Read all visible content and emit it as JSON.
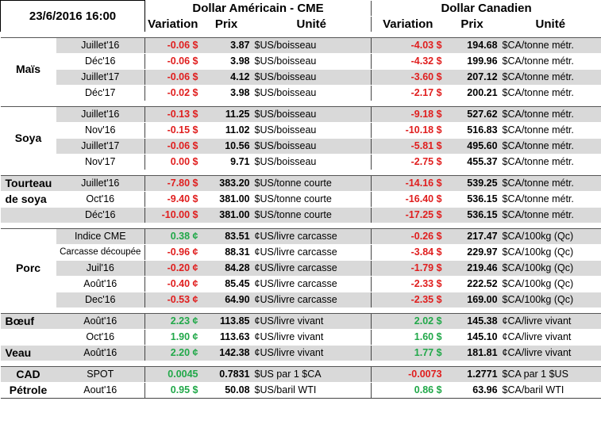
{
  "header": {
    "date": "23/6/2016 16:00",
    "group_us": "Dollar Américain - CME",
    "group_ca": "Dollar Canadien",
    "col_variation": "Variation",
    "col_prix": "Prix",
    "col_unite": "Unité"
  },
  "sections": [
    {
      "label": "Maïs",
      "rows": [
        {
          "period": "Juillet'16",
          "us_var": "-0.06 $",
          "us_price": "3.87",
          "us_unit": "$US/boisseau",
          "ca_var": "-4.03 $",
          "ca_price": "194.68",
          "ca_unit": "$CA/tonne métr."
        },
        {
          "period": "Déc'16",
          "us_var": "-0.06 $",
          "us_price": "3.98",
          "us_unit": "$US/boisseau",
          "ca_var": "-4.32 $",
          "ca_price": "199.96",
          "ca_unit": "$CA/tonne métr."
        },
        {
          "period": "Juillet'17",
          "us_var": "-0.06 $",
          "us_price": "4.12",
          "us_unit": "$US/boisseau",
          "ca_var": "-3.60 $",
          "ca_price": "207.12",
          "ca_unit": "$CA/tonne métr."
        },
        {
          "period": "Déc'17",
          "us_var": "-0.02 $",
          "us_price": "3.98",
          "us_unit": "$US/boisseau",
          "ca_var": "-2.17 $",
          "ca_price": "200.21",
          "ca_unit": "$CA/tonne métr."
        }
      ]
    },
    {
      "label": "Soya",
      "rows": [
        {
          "period": "Juillet'16",
          "us_var": "-0.13 $",
          "us_price": "11.25",
          "us_unit": "$US/boisseau",
          "ca_var": "-9.18 $",
          "ca_price": "527.62",
          "ca_unit": "$CA/tonne métr."
        },
        {
          "period": "Nov'16",
          "us_var": "-0.15 $",
          "us_price": "11.02",
          "us_unit": "$US/boisseau",
          "ca_var": "-10.18 $",
          "ca_price": "516.83",
          "ca_unit": "$CA/tonne métr."
        },
        {
          "period": "Juillet'17",
          "us_var": "-0.06 $",
          "us_price": "10.56",
          "us_unit": "$US/boisseau",
          "ca_var": "-5.81 $",
          "ca_price": "495.60",
          "ca_unit": "$CA/tonne métr."
        },
        {
          "period": "Nov'17",
          "us_var": "0.00 $",
          "us_price": "9.71",
          "us_unit": "$US/boisseau",
          "ca_var": "-2.75 $",
          "ca_price": "455.37",
          "ca_unit": "$CA/tonne métr."
        }
      ]
    },
    {
      "label_line1": "Tourteau",
      "label_line2": "de soya",
      "rows": [
        {
          "period": "Juillet'16",
          "us_var": "-7.80 $",
          "us_price": "383.20",
          "us_unit": "$US/tonne courte",
          "ca_var": "-14.16 $",
          "ca_price": "539.25",
          "ca_unit": "$CA/tonne métr."
        },
        {
          "period": "Oct'16",
          "us_var": "-9.40 $",
          "us_price": "381.00",
          "us_unit": "$US/tonne courte",
          "ca_var": "-16.40 $",
          "ca_price": "536.15",
          "ca_unit": "$CA/tonne métr."
        },
        {
          "period": "Déc'16",
          "us_var": "-10.00 $",
          "us_price": "381.00",
          "us_unit": "$US/tonne courte",
          "ca_var": "-17.25 $",
          "ca_price": "536.15",
          "ca_unit": "$CA/tonne métr."
        }
      ]
    },
    {
      "label": "Porc",
      "rows": [
        {
          "period": "Indice CME",
          "us_var": "0.38 ¢",
          "us_price": "83.51",
          "us_unit": "¢US/livre carcasse",
          "ca_var": "-0.26 $",
          "ca_price": "217.47",
          "ca_unit": "$CA/100kg (Qc)"
        },
        {
          "period": "Carcasse découpée",
          "us_var": "-0.96 ¢",
          "us_price": "88.31",
          "us_unit": "¢US/livre carcasse",
          "ca_var": "-3.84 $",
          "ca_price": "229.97",
          "ca_unit": "$CA/100kg (Qc)"
        },
        {
          "period": "Juil'16",
          "us_var": "-0.20 ¢",
          "us_price": "84.28",
          "us_unit": "¢US/livre carcasse",
          "ca_var": "-1.79 $",
          "ca_price": "219.46",
          "ca_unit": "$CA/100kg (Qc)"
        },
        {
          "period": "Août'16",
          "us_var": "-0.40 ¢",
          "us_price": "85.45",
          "us_unit": "¢US/livre carcasse",
          "ca_var": "-2.33 $",
          "ca_price": "222.52",
          "ca_unit": "$CA/100kg (Qc)"
        },
        {
          "period": "Dec'16",
          "us_var": "-0.53 ¢",
          "us_price": "64.90",
          "us_unit": "¢US/livre carcasse",
          "ca_var": "-2.35 $",
          "ca_price": "169.00",
          "ca_unit": "$CA/100kg (Qc)"
        }
      ]
    },
    {
      "label_boeuf": "Bœuf",
      "label_veau": "Veau",
      "rows": [
        {
          "period": "Août'16",
          "us_var": "2.23 ¢",
          "us_price": "113.85",
          "us_unit": "¢US/livre vivant",
          "ca_var": "2.02 $",
          "ca_price": "145.38",
          "ca_unit": "¢CA/livre vivant"
        },
        {
          "period": "Oct'16",
          "us_var": "1.90 ¢",
          "us_price": "113.63",
          "us_unit": "¢US/livre vivant",
          "ca_var": "1.60 $",
          "ca_price": "145.10",
          "ca_unit": "¢CA/livre vivant"
        },
        {
          "period": "Août'16",
          "us_var": "2.20 ¢",
          "us_price": "142.38",
          "us_unit": "¢US/livre vivant",
          "ca_var": "1.77 $",
          "ca_price": "181.81",
          "ca_unit": "¢CA/livre vivant"
        }
      ]
    },
    {
      "rows": [
        {
          "label": "CAD",
          "period": "SPOT",
          "us_var": "0.0045",
          "us_price": "0.7831",
          "us_unit": "$US par 1 $CA",
          "ca_var": "-0.0073",
          "ca_price": "1.2771",
          "ca_unit": "$CA par 1 $US"
        },
        {
          "label": "Pétrole",
          "period": "Aout'16",
          "us_var": "0.95 $",
          "us_price": "50.08",
          "us_unit": "$US/baril WTI",
          "ca_var": "0.86 $",
          "ca_price": "63.96",
          "ca_unit": "$CA/baril WTI"
        }
      ]
    }
  ],
  "colors": {
    "negative": "#e01e1e",
    "positive": "#21a849",
    "stripe": "#d9d9d9"
  }
}
